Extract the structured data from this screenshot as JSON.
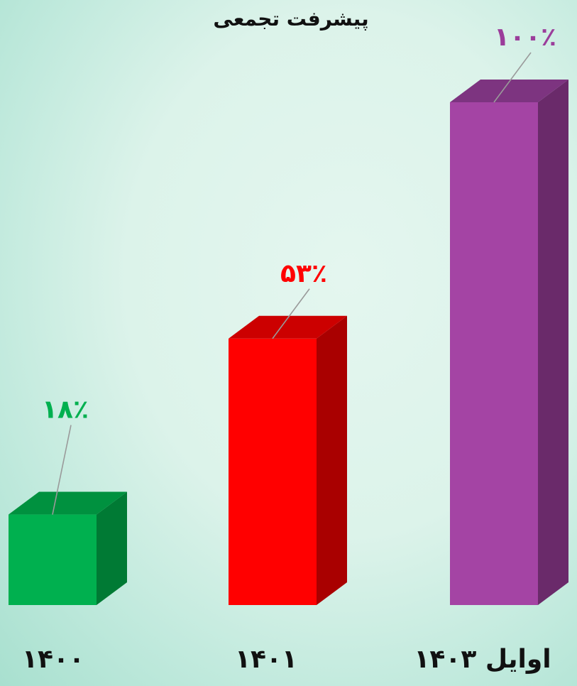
{
  "chart_data": {
    "type": "bar",
    "title": "پیشرفت تجمعی",
    "categories": [
      "۱۴۰۰",
      "۱۴۰۱",
      "اوایل ۱۴۰۳"
    ],
    "values": [
      18,
      53,
      100
    ],
    "value_labels": [
      "۱۸٪",
      "۵۳٪",
      "۱۰۰٪"
    ],
    "colors": [
      "#00b04f",
      "#ff0000",
      "#a444a4"
    ],
    "side_colors": [
      "#007a34",
      "#a90000",
      "#6a2a6a"
    ],
    "top_colors": [
      "#00913f",
      "#cc0000",
      "#7d3480"
    ],
    "ylim": [
      0,
      100
    ],
    "style": "3d-column",
    "grid": false,
    "legend": "none"
  }
}
